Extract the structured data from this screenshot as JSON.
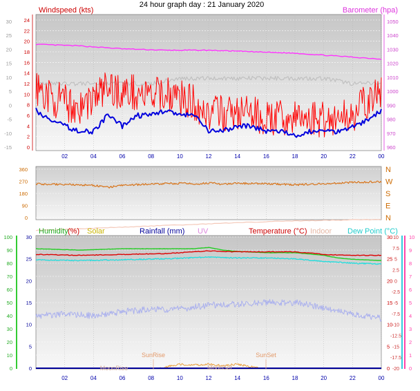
{
  "title": "24 hour graph day : 21 January 2020",
  "colors": {
    "wind_avg": "#0000dd",
    "wind_gust": "#ff0000",
    "wind_max_gust": "#c0c0c0",
    "baro": "#ff33ff",
    "dir": "#d8741a",
    "humidity": "#22cc22",
    "temp": "#dd0000",
    "indoor": "#f4c8b8",
    "dewpoint": "#22dddd",
    "uv": "#aab0ee",
    "solar": "#e8a040",
    "rain": "#000099",
    "axis_cyan": "#33ccdd",
    "axis_pink": "#ff44aa",
    "axis_green": "#33cc33"
  },
  "chart_data": [
    {
      "type": "line",
      "id": "wind-baro",
      "title": "24 hour graph day : 21 January 2020",
      "left_label": "Windspeed (kts)",
      "right_label": "Barometer (hpa)",
      "left_ticks": [
        "24",
        "22",
        "20",
        "18",
        "16",
        "14",
        "12",
        "10",
        "8",
        "6",
        "4",
        "2",
        "0"
      ],
      "far_left_ticks": [
        "30",
        "25",
        "20",
        "15",
        "10",
        "5",
        "0",
        "-5",
        "-10",
        "-15"
      ],
      "right_ticks": [
        "1050",
        "1040",
        "1030",
        "1020",
        "1010",
        "1000",
        "990",
        "980",
        "970",
        "960"
      ],
      "x_ticks": [
        "02",
        "04",
        "06",
        "08",
        "10",
        "12",
        "14",
        "16",
        "18",
        "20",
        "22",
        "00"
      ],
      "ylim_left": [
        0,
        25
      ],
      "ylim_right": [
        956,
        1053
      ],
      "series": [
        {
          "name": "Barometer",
          "x": [
            0,
            3,
            6,
            9,
            12,
            15,
            18,
            21,
            24
          ],
          "values": [
            1030,
            1029,
            1027,
            1026,
            1026,
            1025,
            1024,
            1022,
            1020
          ]
        },
        {
          "name": "Windspeed",
          "x": [
            0,
            1,
            2,
            3,
            4,
            5,
            6,
            7,
            8,
            9,
            10,
            11,
            12,
            13,
            14,
            15,
            16,
            17,
            18,
            19,
            20,
            21,
            22,
            23,
            24
          ],
          "values": [
            7,
            5,
            4,
            3,
            3,
            6,
            4,
            6,
            6,
            7,
            6,
            6,
            3,
            3,
            4,
            4,
            3,
            3,
            2,
            3,
            3,
            3,
            4,
            5,
            7
          ]
        },
        {
          "name": "Gust",
          "x": [
            0,
            1,
            2,
            3,
            4,
            5,
            6,
            7,
            8,
            9,
            10,
            11,
            12,
            13,
            14,
            15,
            16,
            17,
            18,
            19,
            20,
            21,
            22,
            23,
            24
          ],
          "values": [
            11,
            9,
            8,
            7,
            9,
            11,
            10,
            10,
            9,
            10,
            9,
            8,
            6,
            6,
            6,
            6,
            5,
            5,
            5,
            5,
            5,
            5,
            6,
            8,
            10
          ]
        },
        {
          "name": "Max gust",
          "x": [
            0,
            2,
            4,
            6,
            8,
            10,
            12,
            14,
            16,
            18,
            20,
            22,
            24
          ],
          "values": [
            12,
            12,
            12,
            12,
            12,
            13,
            13,
            13,
            13,
            13,
            13,
            12,
            12
          ]
        }
      ]
    },
    {
      "type": "line",
      "id": "direction",
      "left_ticks": [
        "360",
        "270",
        "180",
        "90",
        "0"
      ],
      "right_ticks": [
        "N",
        "W",
        "S",
        "E",
        "N"
      ],
      "ylim": [
        0,
        360
      ],
      "series": [
        {
          "name": "Wind direction",
          "x": [
            0,
            2,
            4,
            5,
            6,
            8,
            10,
            11,
            12,
            13,
            14,
            16,
            18,
            20,
            22,
            24
          ],
          "values": [
            250,
            247,
            240,
            225,
            240,
            250,
            255,
            250,
            258,
            248,
            255,
            252,
            245,
            252,
            262,
            268
          ]
        }
      ]
    },
    {
      "type": "line",
      "id": "temp-hum",
      "labels": {
        "humidity": "Humidity",
        "humidity_unit": "(%)",
        "solar": "Solar",
        "rain": "Rainfall (mm)",
        "uv": "UV",
        "temp": "Temperature (°C)",
        "indoor": "Indoor",
        "dew": "Dew Point (°C)"
      },
      "left_ticks_humidity": [
        "100",
        "90",
        "80",
        "70",
        "60",
        "50",
        "40",
        "30",
        "20",
        "10",
        "0"
      ],
      "left_ticks_rain": [
        "30",
        "25",
        "20",
        "15",
        "10",
        "5",
        "0"
      ],
      "right_ticks_temp": [
        "30",
        "25",
        "20",
        "15",
        "10",
        "5",
        "0"
      ],
      "right_ticks_uv": [
        "10",
        "9",
        "8",
        "7",
        "6",
        "5",
        "4",
        "3",
        "2",
        "1",
        "0"
      ],
      "right_ticks_temp_c": [
        "10",
        "7.5",
        "5",
        "2.5",
        "0",
        "-2.5",
        "-5",
        "-7.5",
        "-10",
        "-12.5",
        "-15",
        "-17.5",
        "-20"
      ],
      "x_ticks": [
        "02",
        "04",
        "06",
        "08",
        "10",
        "12",
        "14",
        "16",
        "18",
        "20",
        "22",
        "00"
      ],
      "annotations": [
        "SunRise",
        "SunSet",
        "MoonRise",
        "MoonSet"
      ],
      "ylim_humidity": [
        0,
        100
      ],
      "ylim_temp_c": [
        -20,
        10
      ],
      "series": [
        {
          "name": "Humidity",
          "x": [
            0,
            3,
            6,
            9,
            11,
            12,
            13,
            14,
            16,
            18,
            19,
            20,
            21,
            22,
            24
          ],
          "values": [
            91,
            90,
            91,
            91,
            91,
            92,
            90,
            89,
            88,
            88,
            87,
            86,
            84,
            83,
            82
          ]
        },
        {
          "name": "Temperature",
          "x": [
            0,
            3,
            6,
            9,
            12,
            14,
            16,
            18,
            20,
            22,
            24
          ],
          "values": [
            6.0,
            5.8,
            6.0,
            6.2,
            6.8,
            6.6,
            6.6,
            6.6,
            6.0,
            5.8,
            5.8
          ]
        },
        {
          "name": "Indoor",
          "x": [
            0,
            4,
            8,
            12,
            16,
            20,
            24
          ],
          "values": [
            11.5,
            12,
            12.5,
            13,
            13.5,
            13.8,
            14
          ]
        },
        {
          "name": "Dew Point",
          "x": [
            0,
            3,
            6,
            9,
            12,
            14,
            16,
            18,
            20,
            22,
            24
          ],
          "values": [
            4.8,
            4.6,
            4.8,
            5.0,
            5.4,
            5.2,
            5.2,
            5.0,
            4.4,
            4.0,
            3.8
          ]
        },
        {
          "name": "UV",
          "x": [
            0,
            2,
            4,
            6,
            8,
            10,
            12,
            14,
            16,
            18,
            20,
            22,
            24
          ],
          "values": [
            4,
            4.1,
            4,
            4.3,
            4.5,
            4.5,
            4.8,
            4.9,
            5,
            5,
            4.6,
            4.1,
            3.8
          ]
        },
        {
          "name": "Solar",
          "x": [
            8.6,
            9.5,
            10,
            11,
            12,
            13,
            14,
            15,
            15.5
          ],
          "values": [
            0,
            2,
            3,
            2.5,
            3,
            2,
            3,
            1,
            0
          ]
        },
        {
          "name": "Rainfall",
          "x": [
            0,
            24
          ],
          "values": [
            0,
            0
          ]
        }
      ]
    }
  ]
}
